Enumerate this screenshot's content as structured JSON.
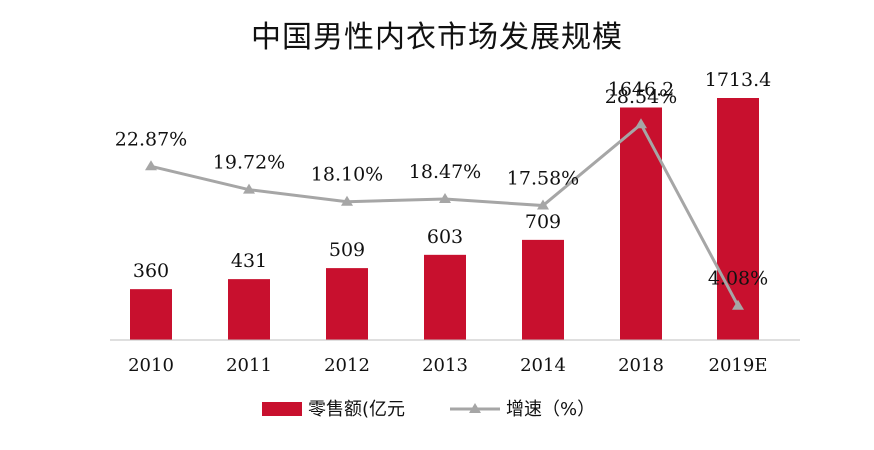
{
  "chart_data": {
    "type": "bar",
    "title": "中国男性内衣市场发展规模",
    "categories": [
      "2010",
      "2011",
      "2012",
      "2013",
      "2014",
      "2018",
      "2019E"
    ],
    "series": [
      {
        "name": "零售额(亿元",
        "type": "bar",
        "values": [
          360,
          431,
          509,
          603,
          709,
          1646.2,
          1713.4
        ],
        "labels": [
          "360",
          "431",
          "509",
          "603",
          "709",
          "1646.2",
          "1713.4"
        ],
        "color": "#c8102e"
      },
      {
        "name": "增速（%）",
        "type": "line",
        "values": [
          22.87,
          19.72,
          18.1,
          18.47,
          17.58,
          28.54,
          4.08
        ],
        "labels": [
          "22.87%",
          "19.72%",
          "18.10%",
          "18.47%",
          "17.58%",
          "28.54%",
          "4.08%"
        ],
        "color": "#a6a6a6"
      }
    ],
    "grid": false,
    "legend": "bottom"
  }
}
